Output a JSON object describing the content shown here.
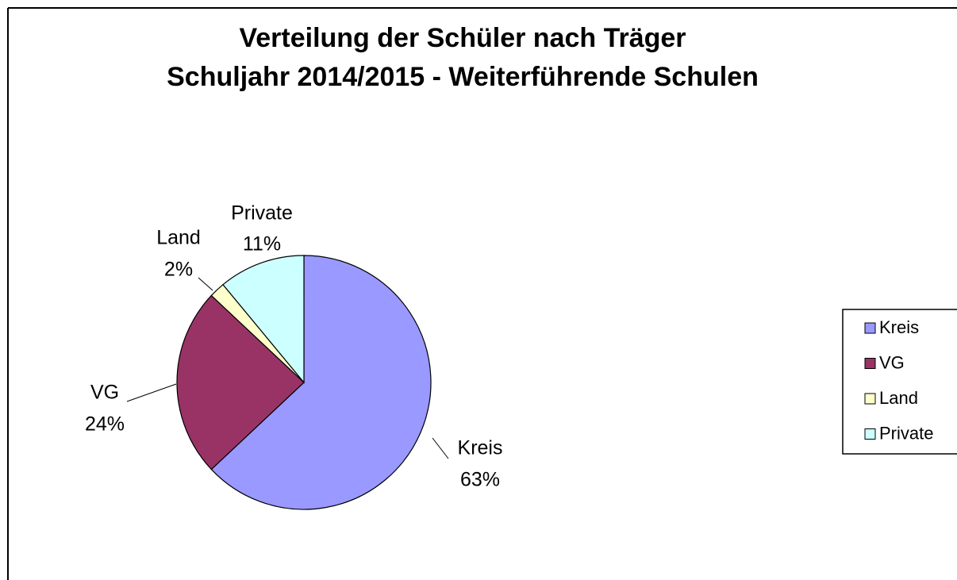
{
  "chart_data": {
    "type": "pie",
    "title": [
      "Verteilung der Schüler nach Träger",
      "Schuljahr 2014/2015 - Weiterführende Schulen"
    ],
    "categories": [
      "Kreis",
      "VG",
      "Land",
      "Private"
    ],
    "values": [
      63,
      24,
      2,
      11
    ],
    "value_labels": [
      "63%",
      "24%",
      "2%",
      "11%"
    ],
    "colors": [
      "#9999ff",
      "#993366",
      "#ffffcc",
      "#ccffff"
    ],
    "legend": "right"
  }
}
